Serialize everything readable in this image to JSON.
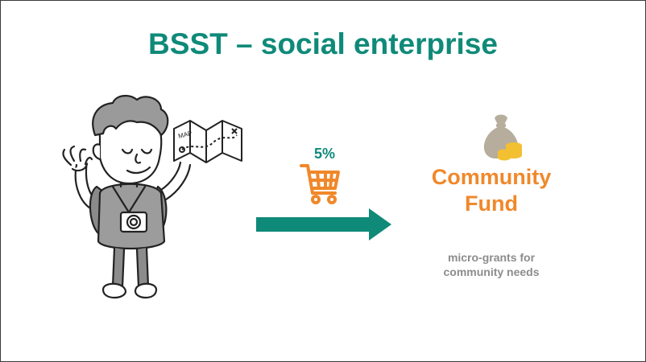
{
  "title": "BSST – social enterprise",
  "flow": {
    "percentage": "5%",
    "arrow_direction": "right"
  },
  "fund": {
    "name_line1": "Community",
    "name_line2": "Fund",
    "description_line1": "micro-grants for",
    "description_line2": "community needs"
  },
  "icons": {
    "traveler": "traveler-with-map-illustration",
    "cart": "shopping-cart-icon",
    "money_bag": "money-bag-with-coins-icon",
    "map_label": "MAP"
  },
  "colors": {
    "title": "#0f8a79",
    "arrow": "#0f8a79",
    "percentage": "#0f8a79",
    "cart": "#f0882a",
    "fund_name": "#f0882a",
    "description": "#8c8c8c",
    "bag": "#b7ad9c",
    "coins": "#f2c031"
  }
}
